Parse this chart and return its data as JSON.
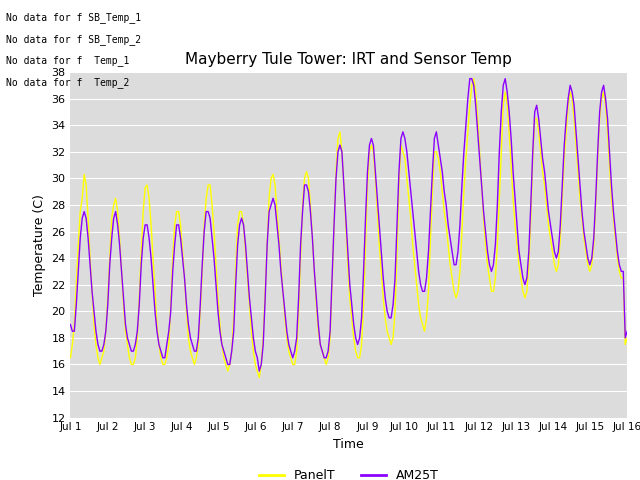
{
  "title": "Mayberry Tule Tower: IRT and Sensor Temp",
  "xlabel": "Time",
  "ylabel": "Temperature (C)",
  "ylim": [
    12,
    38
  ],
  "yticks": [
    12,
    14,
    16,
    18,
    20,
    22,
    24,
    26,
    28,
    30,
    32,
    34,
    36,
    38
  ],
  "bg_color": "#ffffff",
  "plot_bg_color": "#dcdcdc",
  "panel_color": "#ffff00",
  "am25_color": "#8b00ff",
  "no_data_text": [
    "No data for f SB_Temp_1",
    "No data for f SB_Temp_2",
    "No data for f  Temp_1",
    "No data for f  Temp_2"
  ],
  "legend_entries": [
    "PanelT",
    "AM25T"
  ],
  "xtick_labels": [
    "Jul 1",
    "Jul 2",
    "Jul 3",
    "Jul 4",
    "Jul 5",
    "Jul 6",
    "Jul 7",
    "Jul 8",
    "Jul 9",
    "Jul 10",
    "Jul 11",
    "Jul 12",
    "Jul 13",
    "Jul 14",
    "Jul 15",
    "Jul 16"
  ],
  "panel_t": [
    16.5,
    17.5,
    19.0,
    22.0,
    25.0,
    27.5,
    28.5,
    30.3,
    29.5,
    27.0,
    24.0,
    21.5,
    19.0,
    17.5,
    16.5,
    16.0,
    16.5,
    17.0,
    18.5,
    21.0,
    24.0,
    27.0,
    28.0,
    28.5,
    27.5,
    25.5,
    23.0,
    20.5,
    18.5,
    17.5,
    16.5,
    16.0,
    16.0,
    16.5,
    18.0,
    21.0,
    24.5,
    27.5,
    29.3,
    29.5,
    28.5,
    26.5,
    24.0,
    21.5,
    19.0,
    17.5,
    16.5,
    16.0,
    16.0,
    16.5,
    17.5,
    20.5,
    24.0,
    26.5,
    27.5,
    27.5,
    26.5,
    24.5,
    22.5,
    20.0,
    18.0,
    17.0,
    16.5,
    16.0,
    16.5,
    17.5,
    20.0,
    23.0,
    26.5,
    28.5,
    29.5,
    29.5,
    28.0,
    26.0,
    23.5,
    21.0,
    19.0,
    17.5,
    16.5,
    16.0,
    15.5,
    16.0,
    17.0,
    19.5,
    23.0,
    26.5,
    27.5,
    27.5,
    26.5,
    24.5,
    22.5,
    20.5,
    18.5,
    17.0,
    16.0,
    15.5,
    15.0,
    16.0,
    18.0,
    21.5,
    25.0,
    28.5,
    30.0,
    30.3,
    29.5,
    27.5,
    25.5,
    23.5,
    21.5,
    19.5,
    18.0,
    17.0,
    16.5,
    16.0,
    16.0,
    17.0,
    20.0,
    24.0,
    28.0,
    30.0,
    30.5,
    30.0,
    28.0,
    25.5,
    23.0,
    20.5,
    18.5,
    17.5,
    17.0,
    16.5,
    16.0,
    16.5,
    18.0,
    22.0,
    26.5,
    30.5,
    33.0,
    33.5,
    32.0,
    29.5,
    26.5,
    23.5,
    21.0,
    19.5,
    18.0,
    17.0,
    16.5,
    16.5,
    17.5,
    20.5,
    25.0,
    29.5,
    32.0,
    32.5,
    32.0,
    30.0,
    27.5,
    25.0,
    23.0,
    21.0,
    19.5,
    18.5,
    18.0,
    17.5,
    18.0,
    20.0,
    24.5,
    29.5,
    32.5,
    32.0,
    31.5,
    30.0,
    28.5,
    27.0,
    25.0,
    23.5,
    22.0,
    20.5,
    19.5,
    19.0,
    18.5,
    19.5,
    21.5,
    25.5,
    29.0,
    32.0,
    32.0,
    31.5,
    30.5,
    29.0,
    27.5,
    26.5,
    25.0,
    23.5,
    22.5,
    21.5,
    21.0,
    21.5,
    23.0,
    26.0,
    29.0,
    31.5,
    33.5,
    35.5,
    37.0,
    37.5,
    36.5,
    34.5,
    32.0,
    29.5,
    27.0,
    25.0,
    23.5,
    22.5,
    21.5,
    21.5,
    22.5,
    25.0,
    28.5,
    32.0,
    35.5,
    36.5,
    35.5,
    33.5,
    31.0,
    28.5,
    26.5,
    25.0,
    23.5,
    22.5,
    21.5,
    21.0,
    21.5,
    23.5,
    27.0,
    31.5,
    34.5,
    34.5,
    33.5,
    32.0,
    30.5,
    29.5,
    28.0,
    26.5,
    25.5,
    24.5,
    23.5,
    23.0,
    23.5,
    25.5,
    28.5,
    31.5,
    33.5,
    35.5,
    36.5,
    36.0,
    34.5,
    32.5,
    30.5,
    28.5,
    27.0,
    25.5,
    24.5,
    23.5,
    23.0,
    23.5,
    25.0,
    28.0,
    31.5,
    34.5,
    36.0,
    36.5,
    35.5,
    33.5,
    31.0,
    28.5,
    27.0,
    25.5,
    24.0,
    23.0,
    22.5,
    22.5,
    17.5,
    18.0
  ],
  "am25_t": [
    19.0,
    18.5,
    18.5,
    20.5,
    23.0,
    25.5,
    27.0,
    27.5,
    27.0,
    25.5,
    23.5,
    21.5,
    20.0,
    18.5,
    17.5,
    17.0,
    17.0,
    17.5,
    18.5,
    20.5,
    23.5,
    25.5,
    27.0,
    27.5,
    26.5,
    25.0,
    23.0,
    21.0,
    19.0,
    18.0,
    17.5,
    17.0,
    17.0,
    17.5,
    18.5,
    20.5,
    23.5,
    25.5,
    26.5,
    26.5,
    25.5,
    24.0,
    22.0,
    20.0,
    18.5,
    17.5,
    17.0,
    16.5,
    16.5,
    17.5,
    18.5,
    20.0,
    23.0,
    25.0,
    26.5,
    26.5,
    25.5,
    24.0,
    22.5,
    20.5,
    19.0,
    18.0,
    17.5,
    17.0,
    17.0,
    18.0,
    20.5,
    23.5,
    26.0,
    27.5,
    27.5,
    27.0,
    25.5,
    24.0,
    22.0,
    20.0,
    18.5,
    17.5,
    17.0,
    16.5,
    16.0,
    16.0,
    17.0,
    18.5,
    22.0,
    25.0,
    26.5,
    27.0,
    26.5,
    25.0,
    23.0,
    21.0,
    19.5,
    18.0,
    17.0,
    16.5,
    15.5,
    16.0,
    17.5,
    21.0,
    25.0,
    27.5,
    28.0,
    28.5,
    28.0,
    26.5,
    25.0,
    23.0,
    21.5,
    20.0,
    18.5,
    17.5,
    17.0,
    16.5,
    17.0,
    18.0,
    21.0,
    25.0,
    27.5,
    29.5,
    29.5,
    29.0,
    27.5,
    25.5,
    23.0,
    21.0,
    19.0,
    17.5,
    17.0,
    16.5,
    16.5,
    17.0,
    18.5,
    22.5,
    26.5,
    30.0,
    32.0,
    32.5,
    32.0,
    29.5,
    27.0,
    24.5,
    22.0,
    20.5,
    19.0,
    18.0,
    17.5,
    18.0,
    19.5,
    23.0,
    27.0,
    30.5,
    32.5,
    33.0,
    32.5,
    30.5,
    28.5,
    26.5,
    24.5,
    22.5,
    21.0,
    20.0,
    19.5,
    19.5,
    20.5,
    22.5,
    26.5,
    30.5,
    33.0,
    33.5,
    33.0,
    32.0,
    30.5,
    29.0,
    27.5,
    26.0,
    24.5,
    23.0,
    22.0,
    21.5,
    21.5,
    22.5,
    24.5,
    27.5,
    30.5,
    33.0,
    33.5,
    32.5,
    31.5,
    30.5,
    29.0,
    28.0,
    26.5,
    25.5,
    24.5,
    23.5,
    23.5,
    24.5,
    26.5,
    29.5,
    32.0,
    34.0,
    36.0,
    37.5,
    37.5,
    37.0,
    35.5,
    33.5,
    31.5,
    29.5,
    27.5,
    26.0,
    24.5,
    23.5,
    23.0,
    23.5,
    25.0,
    28.0,
    32.0,
    35.0,
    37.0,
    37.5,
    36.5,
    35.0,
    33.0,
    30.5,
    28.5,
    26.5,
    24.5,
    23.5,
    22.5,
    22.0,
    22.5,
    24.5,
    28.0,
    32.0,
    35.0,
    35.5,
    34.5,
    33.0,
    31.5,
    30.5,
    29.0,
    27.5,
    26.5,
    25.5,
    24.5,
    24.0,
    24.5,
    26.5,
    29.5,
    32.5,
    34.5,
    36.0,
    37.0,
    36.5,
    35.5,
    33.5,
    31.5,
    29.5,
    27.5,
    26.0,
    25.0,
    24.0,
    23.5,
    24.0,
    25.5,
    28.5,
    32.0,
    35.0,
    36.5,
    37.0,
    36.0,
    34.5,
    32.0,
    29.5,
    27.5,
    26.0,
    24.5,
    23.5,
    23.0,
    23.0,
    18.0,
    18.5
  ]
}
